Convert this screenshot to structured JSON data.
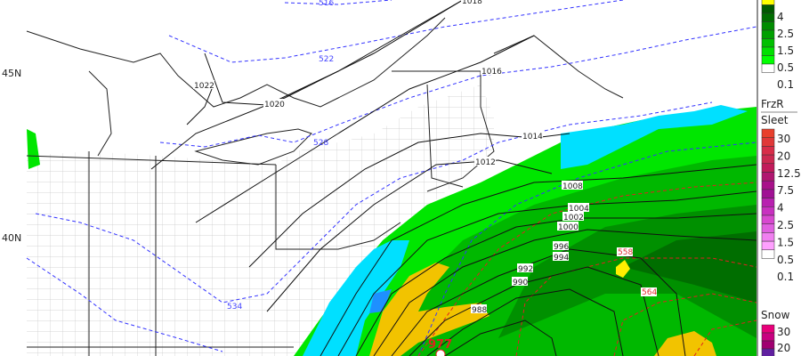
{
  "map": {
    "latitude_labels": [
      "45N",
      "40N"
    ],
    "isobar_labels": [
      "1022",
      "1020",
      "1018",
      "1016",
      "1014",
      "1012",
      "1008",
      "1004",
      "1002",
      "1000",
      "996",
      "994",
      "992",
      "990",
      "988"
    ],
    "low_center_label": "977",
    "thickness_labels_blue": [
      "516",
      "522",
      "528",
      "534"
    ],
    "thickness_labels_red": [
      "558",
      "564"
    ],
    "colors": {
      "rain_light": "#00e600",
      "rain_mid": "#00b400",
      "rain_heavy": "#007a00",
      "rain_max": "#ffee00",
      "rain_yellow": "#f2c300",
      "frzr_sleet": "#00e0ff",
      "frzr_dark": "#1e90ff",
      "thickness_cold": "#3333ff",
      "thickness_warm": "#e02020",
      "isobar": "#111111"
    }
  },
  "legend": {
    "rain": {
      "values": [
        "4",
        "2.5",
        "1.5",
        "0.5",
        "0.1"
      ],
      "colors": [
        "#ffff00",
        "#005a00",
        "#006e00",
        "#008c00",
        "#00a000",
        "#00c000",
        "#00e000",
        "#00ff00",
        "#ffffff"
      ]
    },
    "frzr_title": "FrzR",
    "sleet_title": "Sleet",
    "sleet": {
      "values": [
        "30",
        "20",
        "12.5",
        "7.5",
        "4",
        "2.5",
        "1.5",
        "0.5",
        "0.1"
      ],
      "colors": [
        "#e8402c",
        "#e03838",
        "#d82c48",
        "#cc2850",
        "#c21a5a",
        "#b01670",
        "#a8108a",
        "#a01094",
        "#b820b0",
        "#c830c0",
        "#d848d0",
        "#e060e0",
        "#f080f0",
        "#ffa0ff",
        "#ffffff"
      ]
    },
    "snow_title": "Snow",
    "snow": {
      "values": [
        "30",
        "20"
      ],
      "colors": [
        "#e8007a",
        "#c80080",
        "#a00070",
        "#6020a0"
      ]
    }
  }
}
